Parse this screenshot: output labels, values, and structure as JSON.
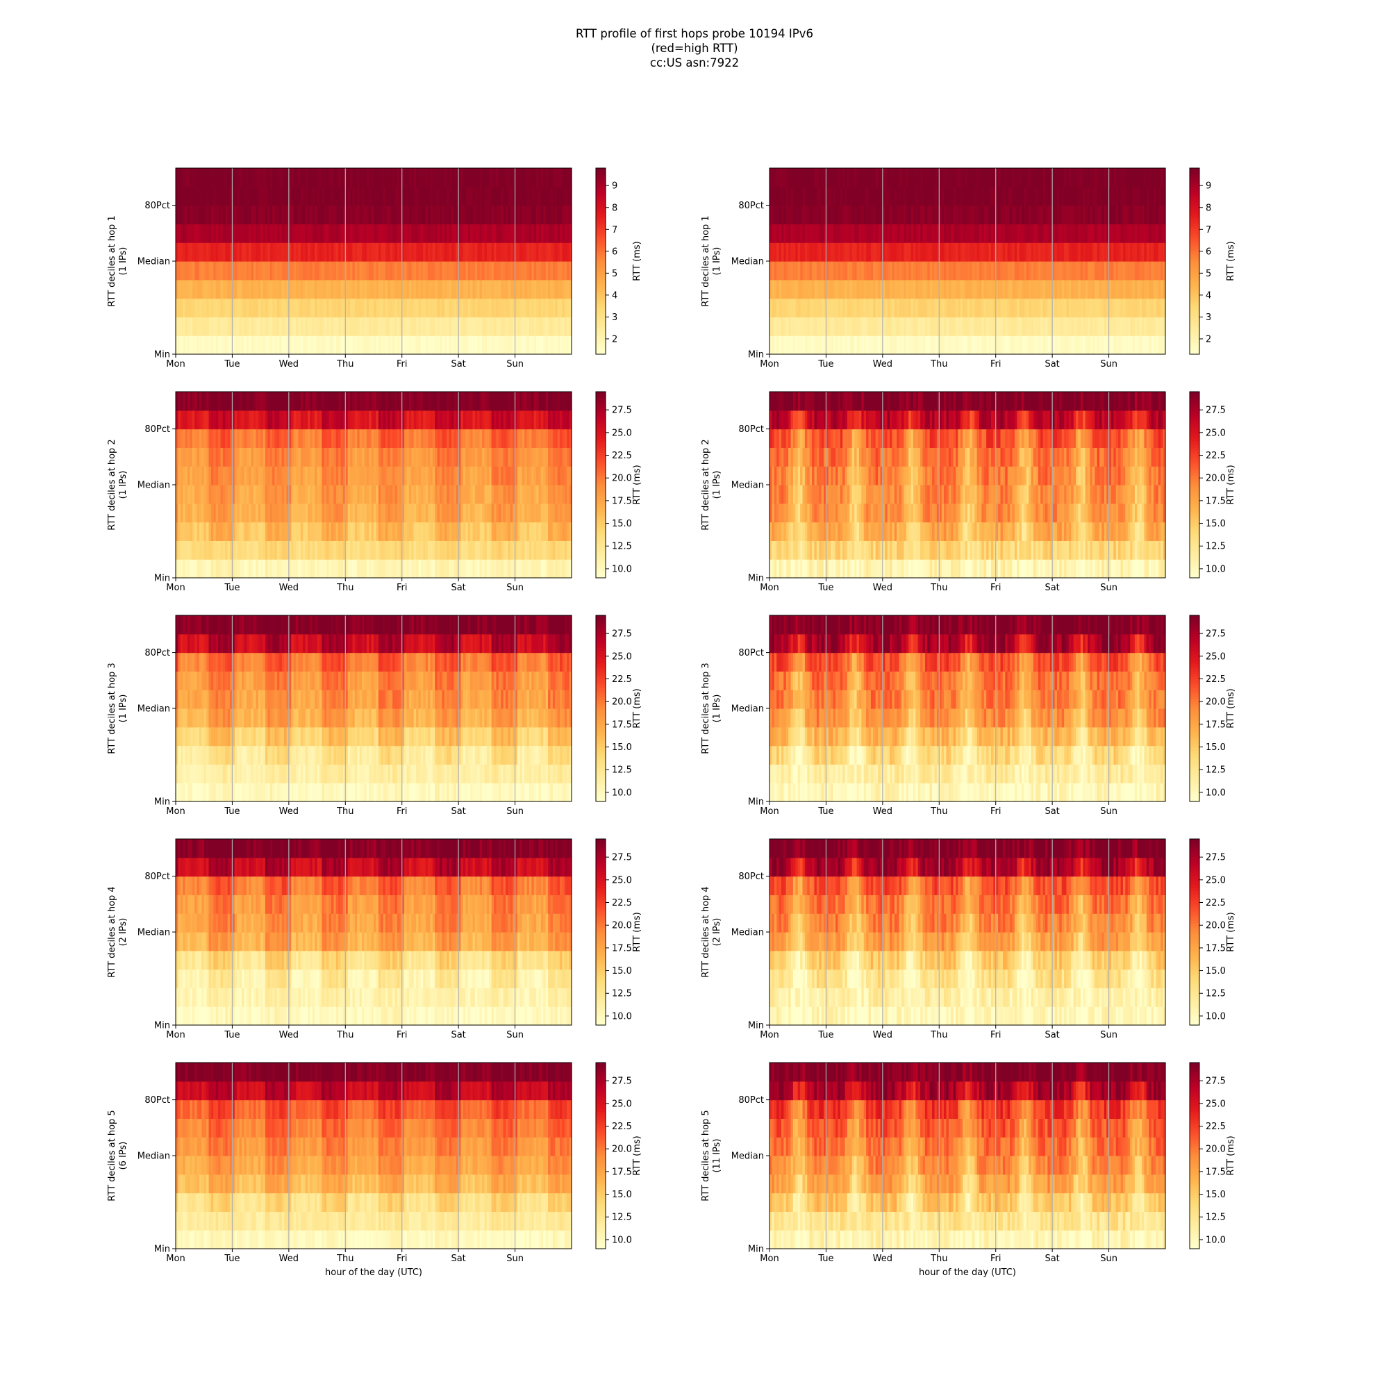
{
  "title_lines": [
    "RTT profile of first hops probe 10194 IPv6",
    "(red=high RTT)",
    "cc:US asn:7922"
  ],
  "colormap": "YlOrRd",
  "colors": {
    "low": "#ffffcc",
    "high": "#800026",
    "gridline": "#b0b0b0"
  },
  "chart_data": [
    {
      "type": "heatmap",
      "ylabel": "RTT deciles at hop 1",
      "ylabel2": "(1 IPs)",
      "xlabel": "",
      "x_ticks": [
        "Mon",
        "Tue",
        "Wed",
        "Thu",
        "Fri",
        "Sat",
        "Sun"
      ],
      "y_ticks": [
        "Min",
        "Median",
        "80Pct"
      ],
      "colorbar_label": "RTT (ms)",
      "colorbar_ticks": [
        "2",
        "3",
        "4",
        "5",
        "6",
        "7",
        "8",
        "9"
      ],
      "colorbar_range": [
        1.3,
        9.8
      ],
      "grid": true,
      "pattern": "flat",
      "decile_levels": [
        1.5,
        2.5,
        3.5,
        4.5,
        5.8,
        7.5,
        9,
        9.6,
        9.8,
        9.8
      ],
      "daily_variation": 0
    },
    {
      "type": "heatmap",
      "ylabel": "RTT deciles at hop 1",
      "ylabel2": "(1 IPs)",
      "xlabel": "",
      "x_ticks": [
        "Mon",
        "Tue",
        "Wed",
        "Thu",
        "Fri",
        "Sat",
        "Sun"
      ],
      "y_ticks": [
        "Min",
        "Median",
        "80Pct"
      ],
      "colorbar_label": "RTT (ms)",
      "colorbar_ticks": [
        "2",
        "3",
        "4",
        "5",
        "6",
        "7",
        "8",
        "9"
      ],
      "colorbar_range": [
        1.3,
        9.8
      ],
      "grid": true,
      "pattern": "flat",
      "decile_levels": [
        1.5,
        2.5,
        3.5,
        4.5,
        5.8,
        7.5,
        9,
        9.6,
        9.8,
        9.8
      ],
      "daily_variation": 0
    },
    {
      "type": "heatmap",
      "ylabel": "RTT deciles at hop 2",
      "ylabel2": "(1 IPs)",
      "xlabel": "",
      "x_ticks": [
        "Mon",
        "Tue",
        "Wed",
        "Thu",
        "Fri",
        "Sat",
        "Sun"
      ],
      "y_ticks": [
        "Min",
        "Median",
        "80Pct"
      ],
      "colorbar_label": "RTT (ms)",
      "colorbar_ticks": [
        "10.0",
        "12.5",
        "15.0",
        "17.5",
        "20.0",
        "22.5",
        "25.0",
        "27.5"
      ],
      "colorbar_range": [
        9,
        29.5
      ],
      "grid": true,
      "pattern": "flat",
      "decile_levels": [
        10.5,
        14,
        16.5,
        18,
        18.5,
        19,
        19.5,
        21,
        26,
        29.5
      ],
      "daily_variation": 2.5
    },
    {
      "type": "heatmap",
      "ylabel": "RTT deciles at hop 2",
      "ylabel2": "(1 IPs)",
      "xlabel": "",
      "x_ticks": [
        "Mon",
        "Tue",
        "Wed",
        "Thu",
        "Fri",
        "Sat",
        "Sun"
      ],
      "y_ticks": [
        "Min",
        "Median",
        "80Pct"
      ],
      "colorbar_label": "RTT (ms)",
      "colorbar_ticks": [
        "10.0",
        "12.5",
        "15.0",
        "17.5",
        "20.0",
        "22.5",
        "25.0",
        "27.5"
      ],
      "colorbar_range": [
        9,
        29.5
      ],
      "grid": true,
      "pattern": "peaks",
      "decile_levels": [
        10.5,
        14,
        16.5,
        18,
        18.5,
        19,
        19.5,
        21,
        26,
        29.5
      ],
      "daily_variation": 5
    },
    {
      "type": "heatmap",
      "ylabel": "RTT deciles at hop 3",
      "ylabel2": "(1 IPs)",
      "xlabel": "",
      "x_ticks": [
        "Mon",
        "Tue",
        "Wed",
        "Thu",
        "Fri",
        "Sat",
        "Sun"
      ],
      "y_ticks": [
        "Min",
        "Median",
        "80Pct"
      ],
      "colorbar_label": "RTT (ms)",
      "colorbar_ticks": [
        "10.0",
        "12.5",
        "15.0",
        "17.5",
        "20.0",
        "22.5",
        "25.0",
        "27.5"
      ],
      "colorbar_range": [
        9,
        29.5
      ],
      "grid": true,
      "pattern": "flat",
      "decile_levels": [
        10,
        11.5,
        13,
        15.5,
        18,
        19,
        19.5,
        21,
        27,
        29.5
      ],
      "daily_variation": 3
    },
    {
      "type": "heatmap",
      "ylabel": "RTT deciles at hop 3",
      "ylabel2": "(1 IPs)",
      "xlabel": "",
      "x_ticks": [
        "Mon",
        "Tue",
        "Wed",
        "Thu",
        "Fri",
        "Sat",
        "Sun"
      ],
      "y_ticks": [
        "Min",
        "Median",
        "80Pct"
      ],
      "colorbar_label": "RTT (ms)",
      "colorbar_ticks": [
        "10.0",
        "12.5",
        "15.0",
        "17.5",
        "20.0",
        "22.5",
        "25.0",
        "27.5"
      ],
      "colorbar_range": [
        9,
        29.5
      ],
      "grid": true,
      "pattern": "peaks",
      "decile_levels": [
        10,
        11.5,
        13,
        15.5,
        18,
        19,
        19.5,
        21,
        27,
        29.5
      ],
      "daily_variation": 5
    },
    {
      "type": "heatmap",
      "ylabel": "RTT deciles at hop 4",
      "ylabel2": "(2 IPs)",
      "xlabel": "",
      "x_ticks": [
        "Mon",
        "Tue",
        "Wed",
        "Thu",
        "Fri",
        "Sat",
        "Sun"
      ],
      "y_ticks": [
        "Min",
        "Median",
        "80Pct"
      ],
      "colorbar_label": "RTT (ms)",
      "colorbar_ticks": [
        "10.0",
        "12.5",
        "15.0",
        "17.5",
        "20.0",
        "22.5",
        "25.0",
        "27.5"
      ],
      "colorbar_range": [
        9,
        29.5
      ],
      "grid": true,
      "pattern": "flat",
      "decile_levels": [
        10,
        11,
        12,
        14,
        18,
        19,
        19.5,
        21,
        27,
        29.5
      ],
      "daily_variation": 3
    },
    {
      "type": "heatmap",
      "ylabel": "RTT deciles at hop 4",
      "ylabel2": "(2 IPs)",
      "xlabel": "",
      "x_ticks": [
        "Mon",
        "Tue",
        "Wed",
        "Thu",
        "Fri",
        "Sat",
        "Sun"
      ],
      "y_ticks": [
        "Min",
        "Median",
        "80Pct"
      ],
      "colorbar_label": "RTT (ms)",
      "colorbar_ticks": [
        "10.0",
        "12.5",
        "15.0",
        "17.5",
        "20.0",
        "22.5",
        "25.0",
        "27.5"
      ],
      "colorbar_range": [
        9,
        29.5
      ],
      "grid": true,
      "pattern": "peaks",
      "decile_levels": [
        10,
        11,
        12,
        14,
        17,
        18.5,
        19.5,
        21,
        27,
        29.5
      ],
      "daily_variation": 5
    },
    {
      "type": "heatmap",
      "ylabel": "RTT deciles at hop 5",
      "ylabel2": "(6 IPs)",
      "xlabel": "hour of the day (UTC)",
      "x_ticks": [
        "Mon",
        "Tue",
        "Wed",
        "Thu",
        "Fri",
        "Sat",
        "Sun"
      ],
      "y_ticks": [
        "Min",
        "Median",
        "80Pct"
      ],
      "colorbar_label": "RTT (ms)",
      "colorbar_ticks": [
        "10.0",
        "12.5",
        "15.0",
        "17.5",
        "20.0",
        "22.5",
        "25.0",
        "27.5"
      ],
      "colorbar_range": [
        9,
        29.5
      ],
      "grid": true,
      "pattern": "flat",
      "decile_levels": [
        10,
        12,
        14,
        17,
        18.5,
        19.5,
        20.5,
        22,
        27,
        29.5
      ],
      "daily_variation": 2.5
    },
    {
      "type": "heatmap",
      "ylabel": "RTT deciles at hop 5",
      "ylabel2": "(11 IPs)",
      "xlabel": "hour of the day (UTC)",
      "x_ticks": [
        "Mon",
        "Tue",
        "Wed",
        "Thu",
        "Fri",
        "Sat",
        "Sun"
      ],
      "y_ticks": [
        "Min",
        "Median",
        "80Pct"
      ],
      "colorbar_label": "RTT (ms)",
      "colorbar_ticks": [
        "10.0",
        "12.5",
        "15.0",
        "17.5",
        "20.0",
        "22.5",
        "25.0",
        "27.5"
      ],
      "colorbar_range": [
        9,
        29.5
      ],
      "grid": true,
      "pattern": "peaks",
      "decile_levels": [
        10.5,
        12.5,
        14.5,
        17,
        18.5,
        19.5,
        20.5,
        22,
        27,
        29.5
      ],
      "daily_variation": 5
    }
  ]
}
